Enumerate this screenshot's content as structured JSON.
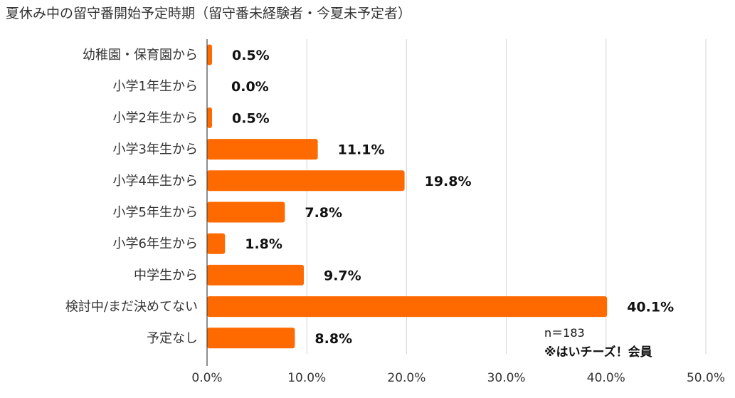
{
  "chart_data": {
    "type": "bar",
    "orientation": "horizontal",
    "title": "夏休み中の留守番開始予定時期（留守番未経験者・今夏未予定者）",
    "categories": [
      "幼稚園・保育園から",
      "小学1年生から",
      "小学2年生から",
      "小学3年生から",
      "小学4年生から",
      "小学5年生から",
      "小学6年生から",
      "中学生から",
      "検討中/まだ決めてない",
      "予定なし"
    ],
    "values": [
      0.5,
      0.0,
      0.5,
      11.1,
      19.8,
      7.8,
      1.8,
      9.7,
      40.1,
      8.8
    ],
    "value_labels": [
      "0.5%",
      "0.0%",
      "0.5%",
      "11.1%",
      "19.8%",
      "7.8%",
      "1.8%",
      "9.7%",
      "40.1%",
      "8.8%"
    ],
    "xlim": [
      0,
      50
    ],
    "xticks": [
      "0.0%",
      "10.0%",
      "20.0%",
      "30.0%",
      "40.0%",
      "50.0%"
    ],
    "grid": true,
    "bar_color": "#ff6a00",
    "annotations": [
      "n＝183",
      "※はいチーズ！会員"
    ]
  }
}
